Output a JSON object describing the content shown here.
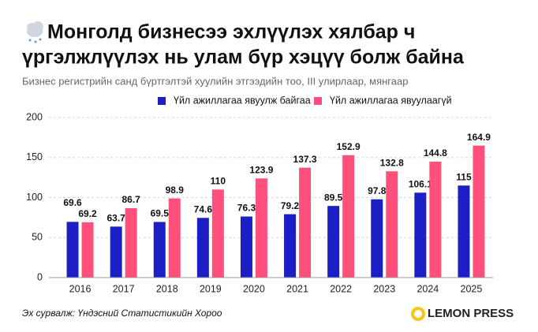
{
  "chart_data": {
    "type": "bar",
    "title": [
      "Монголд бизнесээ эхлүүлэх хялбар ч",
      "үргэлжлүүлэх нь улам бүр хэцүү болж байна"
    ],
    "subtitle": "Бизнес регистрийн санд бүртгэлтэй хуулийн этгээдийн тоо, III улирлаар, мянгаар",
    "categories": [
      "2016",
      "2017",
      "2018",
      "2019",
      "2020",
      "2021",
      "2022",
      "2023",
      "2024",
      "2025"
    ],
    "series": [
      {
        "name": "Үйл ажиллагаа явуулж байгаа",
        "color": "#1c1fc4",
        "values": [
          69.6,
          63.7,
          69.5,
          74.6,
          76.3,
          79.2,
          89.5,
          97.8,
          106.1,
          115
        ]
      },
      {
        "name": "Үйл ажиллагаа явуулаагүй",
        "color": "#ff4f7b",
        "values": [
          69.2,
          86.7,
          98.9,
          110,
          123.9,
          137.3,
          152.9,
          132.8,
          144.8,
          164.9
        ]
      }
    ],
    "ylim": [
      0,
      200
    ],
    "yticks": [
      0,
      50,
      100,
      150,
      200
    ],
    "grid": true
  },
  "source": "Эх сурвалж: Үндэсний Статистикийн Хороо",
  "brand": "LEMON PRESS"
}
